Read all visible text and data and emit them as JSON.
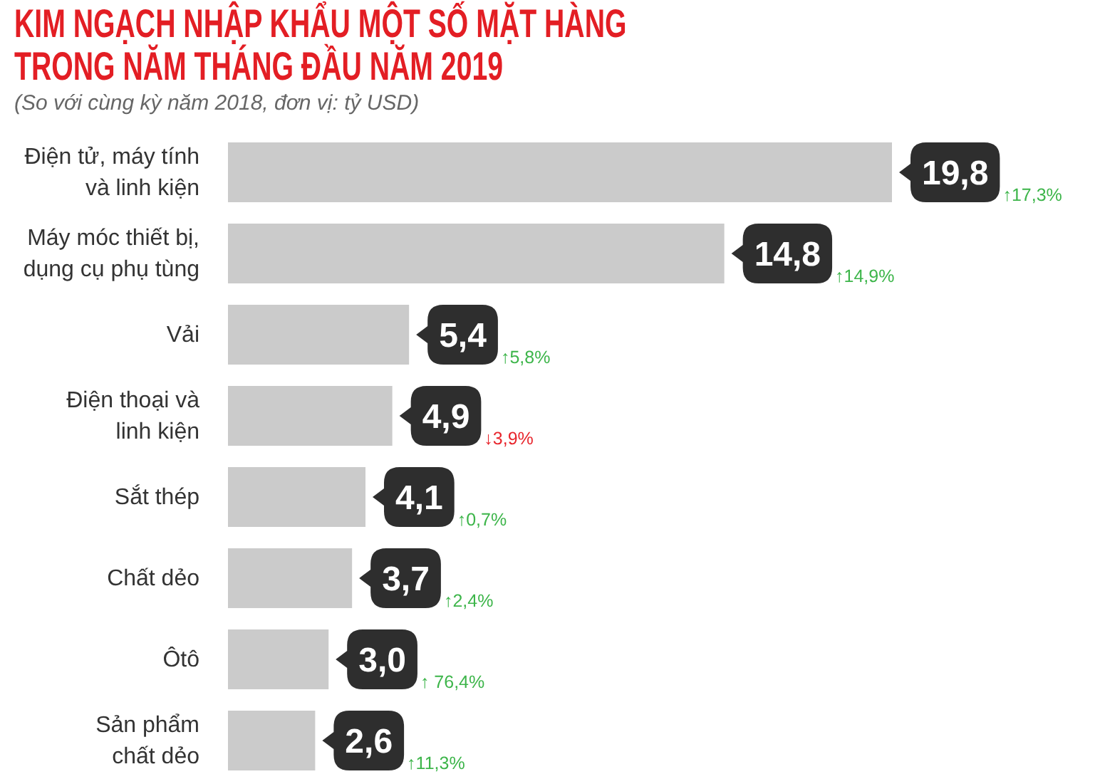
{
  "chart_data": {
    "type": "bar",
    "orientation": "horizontal",
    "title": "KIM NGẠCH NHẬP KHẨU MỘT SỐ MẶT HÀNG TRONG NĂM THÁNG ĐẦU NĂM 2019",
    "subtitle": "(So với cùng kỳ năm 2018, đơn vị: tỷ USD)",
    "categories": [
      "Điện tử, máy tính\nvà linh kiện",
      "Máy móc thiết bị,\ndụng cụ phụ tùng",
      "Vải",
      "Điện thoại và\nlinh kiện",
      "Sắt thép",
      "Chất dẻo",
      "Ôtô",
      "Sản phẩm\nchất dẻo"
    ],
    "values": [
      19.8,
      14.8,
      5.4,
      4.9,
      4.1,
      3.7,
      3.0,
      2.6
    ],
    "color": "#cbcbcb",
    "value_labels": [
      "19,8",
      "14,8",
      "5,4",
      "4,9",
      "4,1",
      "3,7",
      "3,0",
      "2,6"
    ],
    "tick_labels": "y",
    "annotations": [
      "↑17,3%",
      "↑14,9%",
      "↑5,8%",
      "↓3,9%",
      "↑0,7%",
      "↑2,4%",
      "↑ 76,4%",
      "↑11,3%"
    ]
  }
}
